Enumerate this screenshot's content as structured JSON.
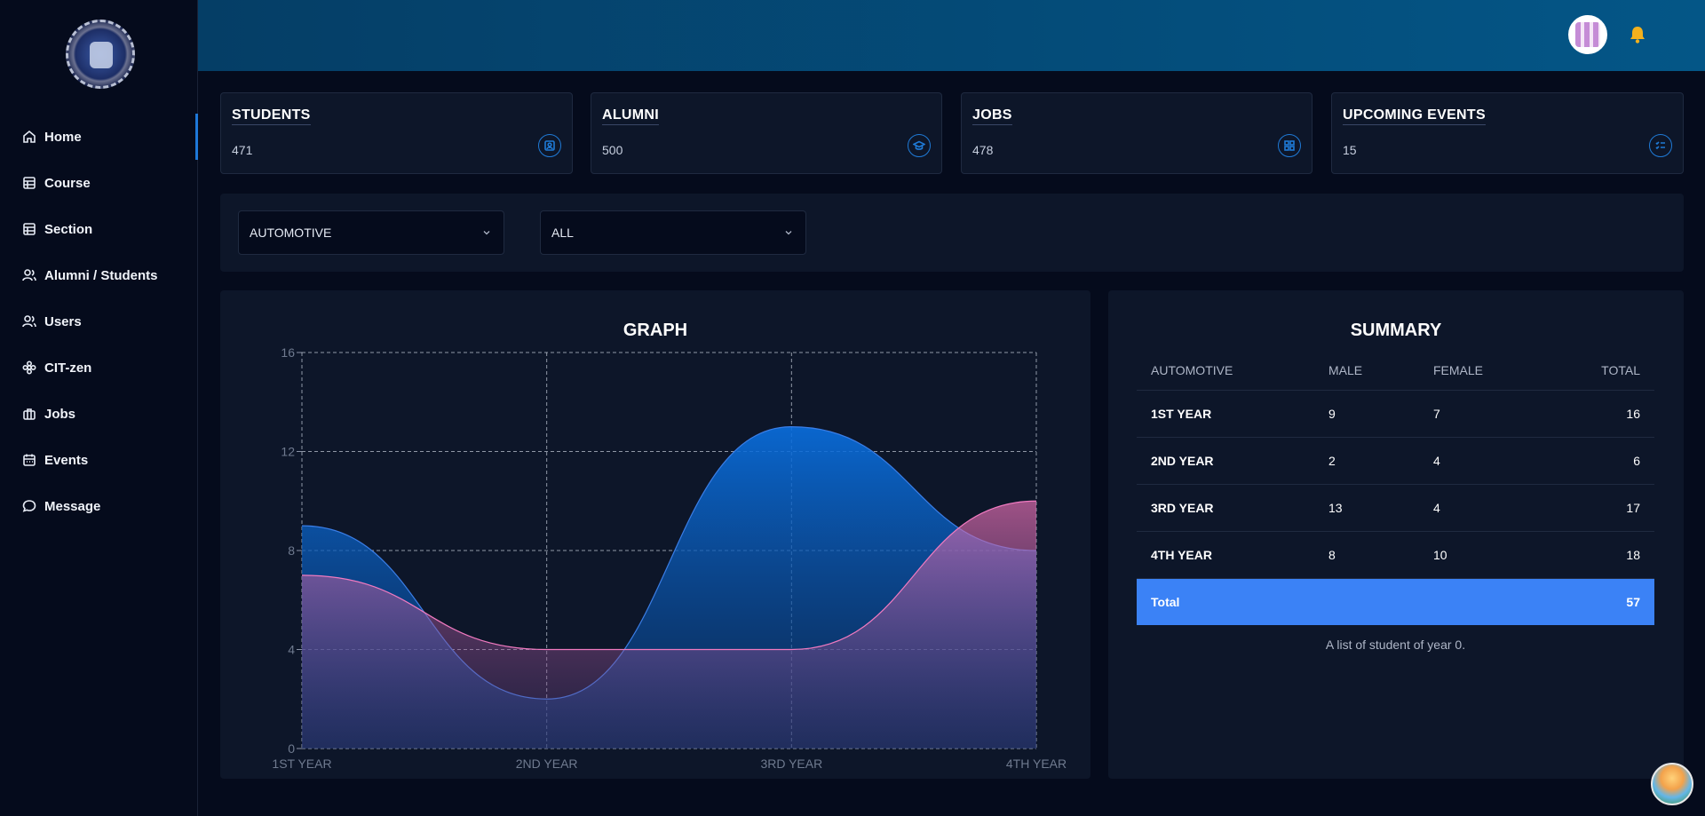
{
  "sidebar": {
    "items": [
      {
        "label": "Home",
        "icon": "home-icon"
      },
      {
        "label": "Course",
        "icon": "table-icon"
      },
      {
        "label": "Section",
        "icon": "table-icon"
      },
      {
        "label": "Alumni / Students",
        "icon": "users-icon"
      },
      {
        "label": "Users",
        "icon": "users-icon"
      },
      {
        "label": "CIT-zen",
        "icon": "flower-icon"
      },
      {
        "label": "Jobs",
        "icon": "briefcase-icon"
      },
      {
        "label": "Events",
        "icon": "calendar-icon"
      },
      {
        "label": "Message",
        "icon": "message-icon"
      }
    ],
    "active": "Home"
  },
  "stats": [
    {
      "title": "STUDENTS",
      "value": "471",
      "icon": "contact-icon"
    },
    {
      "title": "ALUMNI",
      "value": "500",
      "icon": "graduation-cap-icon"
    },
    {
      "title": "JOBS",
      "value": "478",
      "icon": "grid-icon"
    },
    {
      "title": "UPCOMING EVENTS",
      "value": "15",
      "icon": "list-check-icon"
    }
  ],
  "filters": {
    "course": "AUTOMOTIVE",
    "year": "ALL"
  },
  "graph": {
    "title": "GRAPH"
  },
  "chart_data": {
    "type": "area",
    "categories": [
      "1ST YEAR",
      "2ND YEAR",
      "3RD YEAR",
      "4TH YEAR"
    ],
    "series": [
      {
        "values": [
          9,
          2,
          13,
          8
        ],
        "color": "#0a6fe0"
      },
      {
        "values": [
          7,
          4,
          4,
          10
        ],
        "color": "#e56fb3"
      }
    ],
    "ylim": [
      0,
      16
    ],
    "yticks": [
      "0",
      "4",
      "8",
      "12",
      "16"
    ],
    "grid": true
  },
  "summary": {
    "title": "SUMMARY",
    "headers": [
      "AUTOMOTIVE",
      "MALE",
      "FEMALE",
      "TOTAL"
    ],
    "rows": [
      {
        "year": "1ST YEAR",
        "male": "9",
        "female": "7",
        "total": "16"
      },
      {
        "year": "2ND YEAR",
        "male": "2",
        "female": "4",
        "total": "6"
      },
      {
        "year": "3RD YEAR",
        "male": "13",
        "female": "4",
        "total": "17"
      },
      {
        "year": "4TH YEAR",
        "male": "8",
        "female": "10",
        "total": "18"
      }
    ],
    "total_label": "Total",
    "total_value": "57",
    "caption": "A list of student of year 0."
  }
}
